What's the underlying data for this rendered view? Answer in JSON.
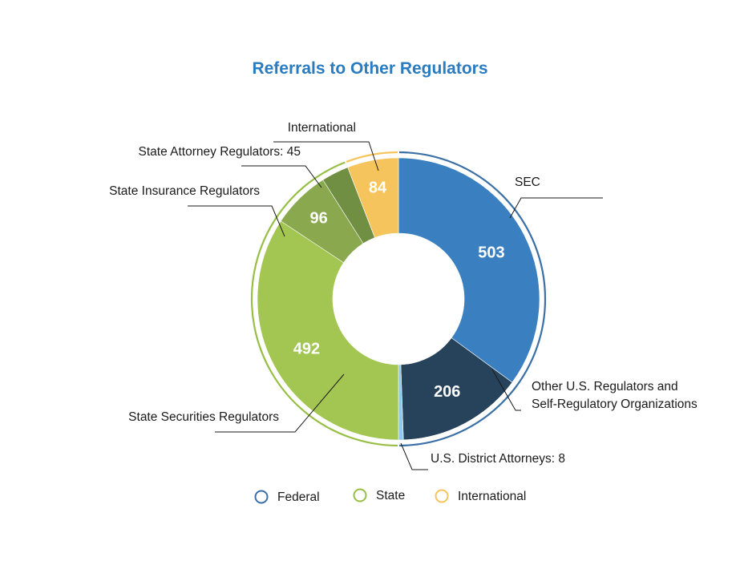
{
  "chart_data": {
    "type": "pie",
    "title": "Referrals to Other Regulators",
    "slices": [
      {
        "label": "SEC",
        "value": 503,
        "value_label": "503",
        "color": "#3a80c1",
        "group": "Federal"
      },
      {
        "label": "Other U.S. Regulators and Self-Regulatory Organizations",
        "value": 206,
        "value_label": "206",
        "color": "#27435b",
        "group": "Federal"
      },
      {
        "label": "U.S. District Attorneys: 8",
        "value": 8,
        "value_label": "",
        "color": "#8fc8ec",
        "group": "Federal"
      },
      {
        "label": "State Securities Regulators",
        "value": 492,
        "value_label": "492",
        "color": "#a2c651",
        "group": "State"
      },
      {
        "label": "State Insurance Regulators",
        "value": 96,
        "value_label": "96",
        "color": "#8aa84e",
        "group": "State"
      },
      {
        "label": "State Attorney Regulators: 45",
        "value": 45,
        "value_label": "",
        "color": "#718f43",
        "group": "State"
      },
      {
        "label": "International",
        "value": 84,
        "value_label": "84",
        "color": "#f6c45c",
        "group": "International"
      }
    ],
    "legend": {
      "placement": "bottom",
      "entries": [
        {
          "label": "Federal",
          "color": "#3a70a6"
        },
        {
          "label": "State",
          "color": "#97bf45"
        },
        {
          "label": "International",
          "color": "#f6c45c"
        }
      ]
    }
  }
}
